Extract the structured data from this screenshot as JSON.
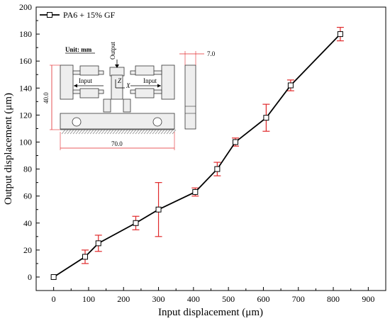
{
  "chart_data": {
    "type": "line",
    "xlabel": "Input displacement (μm)",
    "ylabel": "Output displacement (μm)",
    "xlim": [
      -50,
      950
    ],
    "ylim": [
      -10,
      200
    ],
    "xticks": [
      0,
      100,
      200,
      300,
      400,
      500,
      600,
      700,
      800,
      900
    ],
    "yticks": [
      0,
      20,
      40,
      60,
      80,
      100,
      120,
      140,
      160,
      180,
      200
    ],
    "legend_position": "top-left",
    "grid": false,
    "series": [
      {
        "name": "PA6 + 15% GF",
        "color": "#000000",
        "error_bar_color": "#e0282a",
        "marker": "open-square",
        "x": [
          0,
          90,
          128,
          235,
          300,
          405,
          468,
          520,
          608,
          678,
          820
        ],
        "y": [
          0,
          15,
          25,
          40,
          50,
          63,
          80,
          100,
          118,
          142,
          180
        ],
        "err_low": [
          0,
          5,
          6,
          5,
          20,
          3,
          5,
          3,
          10,
          4,
          5
        ],
        "err_high": [
          0,
          5,
          6,
          5,
          20,
          3,
          5,
          3,
          10,
          4,
          5
        ]
      }
    ]
  },
  "inset": {
    "unit_label": "Unit: mm",
    "output_label": "Output",
    "input_left_label": "Input",
    "input_right_label": "Input",
    "z_label": "Z",
    "x_label": "X",
    "height_dim": "40.0",
    "width_dim": "70.0",
    "thickness_dim": "7.0"
  }
}
